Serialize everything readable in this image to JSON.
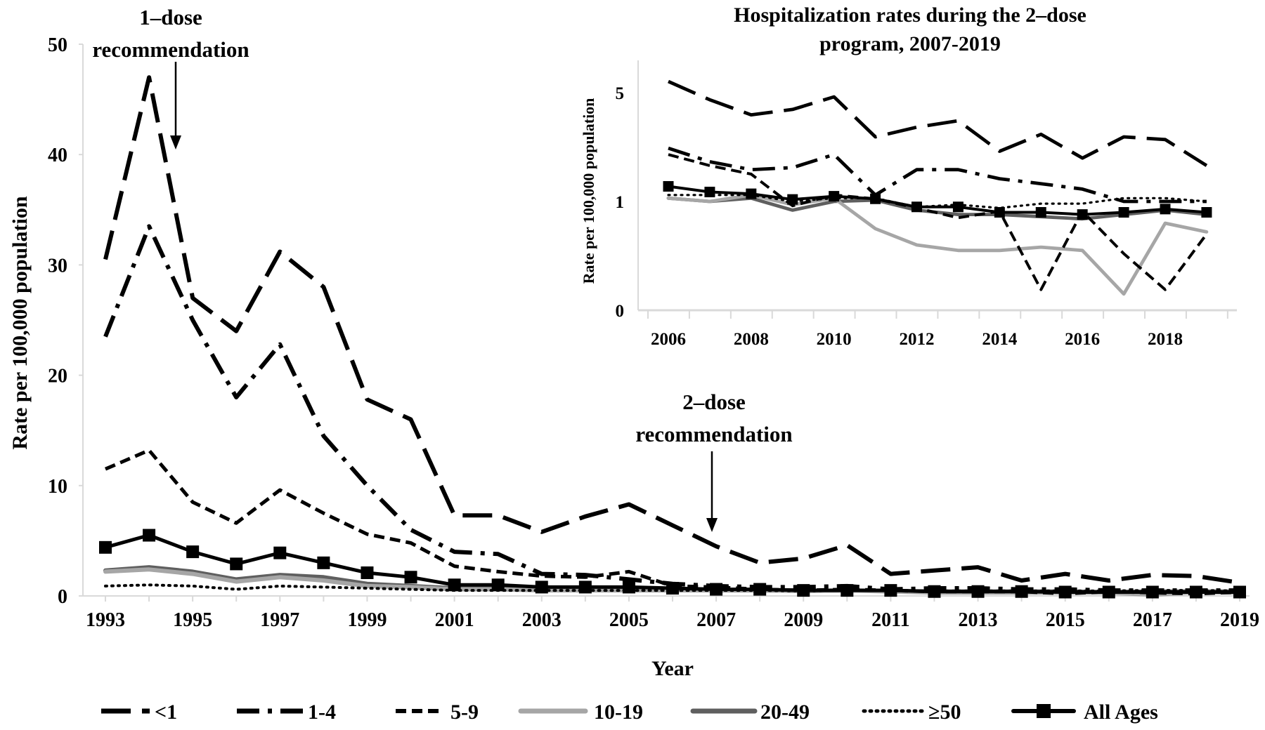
{
  "colors": {
    "black": "#000000",
    "light_gray": "#a6a6a6",
    "dark_gray": "#5f5f5f",
    "axis": "#d9d9d9"
  },
  "chart_data": [
    {
      "type": "line",
      "title": "",
      "xlabel": "Year",
      "ylabel": "Rate per 100,000 population",
      "ylim": [
        0,
        50
      ],
      "yticks": [
        "0",
        "10",
        "20",
        "30",
        "40",
        "50"
      ],
      "xticks": [
        "1993",
        "1995",
        "1997",
        "1999",
        "2001",
        "2003",
        "2005",
        "2007",
        "2009",
        "2011",
        "2013",
        "2015",
        "2017",
        "2019"
      ],
      "x": [
        1993,
        1994,
        1995,
        1996,
        1997,
        1998,
        1999,
        2000,
        2001,
        2002,
        2003,
        2004,
        2005,
        2006,
        2007,
        2008,
        2009,
        2010,
        2011,
        2012,
        2013,
        2014,
        2015,
        2016,
        2017,
        2018,
        2019
      ],
      "annotations": [
        {
          "line1": "1–dose",
          "line2": "recommendation",
          "year": 1995
        },
        {
          "line1": "2–dose",
          "line2": "recommendation",
          "year": 2007
        }
      ],
      "legend_position": "bottom",
      "series": [
        {
          "name": "<1",
          "style": "long-dash",
          "values": [
            30.5,
            47,
            27,
            24,
            31.2,
            28,
            17.8,
            16,
            7.3,
            7.3,
            5.8,
            7.2,
            8.3,
            6.4,
            4.5,
            3,
            3.4,
            4.6,
            2,
            2.3,
            2.6,
            1.4,
            2,
            1.4,
            1.9,
            1.8,
            1.2
          ]
        },
        {
          "name": "1-4",
          "style": "dash-dot",
          "values": [
            23.5,
            33.5,
            25,
            18,
            22.8,
            14.5,
            10,
            6,
            4,
            3.8,
            2,
            1.9,
            1.5,
            1.1,
            0.9,
            0.8,
            0.8,
            0.9,
            0.6,
            0.7,
            0.7,
            0.6,
            0.6,
            0.5,
            0.5,
            0.5,
            0.5
          ]
        },
        {
          "name": "5-9",
          "style": "short-dash",
          "values": [
            11.5,
            13.2,
            8.5,
            6.6,
            9.6,
            7.5,
            5.6,
            4.8,
            2.7,
            2.2,
            1.8,
            1.7,
            2.2,
            0.9,
            0.8,
            0.6,
            0.5,
            0.6,
            0.5,
            0.4,
            0.4,
            0.4,
            0.2,
            0.4,
            0.3,
            0.2,
            0.35
          ]
        },
        {
          "name": "10-19",
          "style": "light-gray",
          "values": [
            2.2,
            2.4,
            2,
            1.3,
            1.7,
            1.4,
            0.9,
            0.8,
            0.6,
            0.6,
            0.5,
            0.5,
            0.5,
            0.5,
            0.5,
            0.5,
            0.45,
            0.5,
            0.4,
            0.3,
            0.3,
            0.3,
            0.3,
            0.3,
            0.1,
            0.35,
            0.3
          ]
        },
        {
          "name": "20-49",
          "style": "dark-gray",
          "values": [
            2.3,
            2.6,
            2.2,
            1.5,
            1.9,
            1.7,
            1.1,
            0.9,
            0.7,
            0.7,
            0.6,
            0.6,
            0.6,
            0.55,
            0.5,
            0.5,
            0.45,
            0.5,
            0.45,
            0.4,
            0.4,
            0.4,
            0.4,
            0.35,
            0.4,
            0.4,
            0.4
          ]
        },
        {
          "name": "≥50",
          "style": "dotted",
          "values": [
            0.9,
            1,
            0.9,
            0.6,
            0.9,
            0.8,
            0.7,
            0.6,
            0.5,
            0.5,
            0.5,
            0.5,
            0.5,
            0.5,
            0.5,
            0.5,
            0.45,
            0.5,
            0.5,
            0.45,
            0.45,
            0.45,
            0.45,
            0.45,
            0.5,
            0.5,
            0.45
          ]
        },
        {
          "name": "All Ages",
          "style": "solid-square",
          "values": [
            4.4,
            5.5,
            4,
            2.9,
            3.9,
            3,
            2.1,
            1.7,
            1,
            1,
            0.8,
            0.8,
            0.8,
            0.7,
            0.6,
            0.6,
            0.5,
            0.5,
            0.5,
            0.4,
            0.4,
            0.4,
            0.35,
            0.35,
            0.35,
            0.35,
            0.35
          ]
        }
      ]
    },
    {
      "type": "line",
      "title": "Hospitalization rates during the 2–dose program,  2007-2019",
      "title_line1": "Hospitalization rates during the 2–dose",
      "title_line2": "program,  2007-2019",
      "xlabel": "",
      "ylabel": "Rate per 100,000 population",
      "yticks": [
        "0",
        "1",
        "5"
      ],
      "xticks": [
        "2006",
        "2008",
        "2010",
        "2012",
        "2014",
        "2016",
        "2018"
      ],
      "x": [
        2006,
        2007,
        2008,
        2009,
        2010,
        2011,
        2012,
        2013,
        2014,
        2015,
        2016,
        2017,
        2018,
        2019
      ],
      "series": [
        {
          "name": "<1",
          "values": [
            5.9,
            4.5,
            3.6,
            3.9,
            4.7,
            2.6,
            3,
            3.3,
            2.1,
            2.7,
            1.9,
            2.6,
            2.5,
            1.7
          ]
        },
        {
          "name": "1-4",
          "values": [
            2.2,
            1.8,
            1.6,
            1.65,
            2,
            1.1,
            1.6,
            1.6,
            1.4,
            1.3,
            1.2,
            1,
            1,
            1
          ]
        },
        {
          "name": "5-9",
          "values": [
            2,
            1.7,
            1.5,
            0.96,
            1.1,
            1.04,
            0.94,
            0.85,
            0.91,
            0.19,
            0.91,
            0.52,
            0.19,
            0.7
          ]
        },
        {
          "name": "10-19",
          "values": [
            1.05,
            1,
            1.1,
            0.97,
            1.05,
            0.75,
            0.6,
            0.55,
            0.55,
            0.58,
            0.55,
            0.15,
            0.8,
            0.72
          ]
        },
        {
          "name": "20-49",
          "values": [
            1.05,
            1,
            1.05,
            0.92,
            1,
            1.02,
            0.92,
            0.88,
            0.88,
            0.86,
            0.84,
            0.88,
            0.92,
            0.88
          ]
        },
        {
          "name": "≥50",
          "values": [
            1.1,
            1.1,
            1.1,
            1,
            1.05,
            1.05,
            0.95,
            0.97,
            0.94,
            0.98,
            0.98,
            1.05,
            1.05,
            1
          ]
        },
        {
          "name": "All Ages",
          "values": [
            1.25,
            1.15,
            1.12,
            1.03,
            1.08,
            1.04,
            0.95,
            0.95,
            0.9,
            0.9,
            0.88,
            0.9,
            0.93,
            0.9
          ]
        }
      ]
    }
  ]
}
